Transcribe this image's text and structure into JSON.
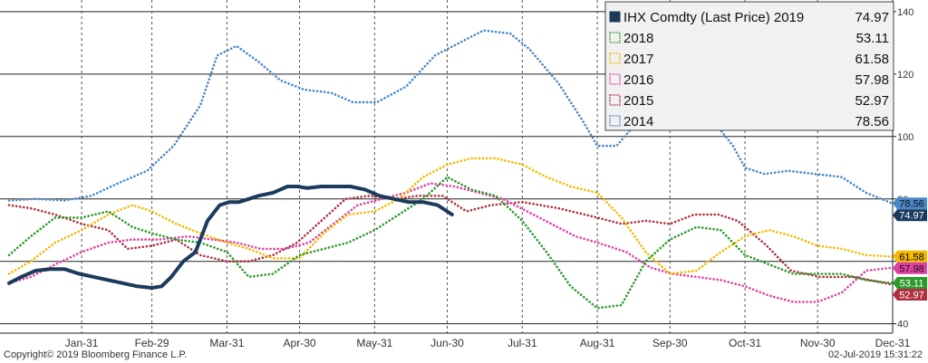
{
  "footer": {
    "copyright": "Copyright© 2019 Bloomberg Finance L.P.",
    "timestamp": "02-Jul-2019 15:31:22"
  },
  "chart_data": {
    "type": "line",
    "title": "",
    "xlabel": "",
    "ylabel": "",
    "x_ticks": [
      "Jan-31",
      "Feb-29",
      "Mar-31",
      "Apr-30",
      "May-31",
      "Jun-30",
      "Jul-31",
      "Aug-31",
      "Sep-30",
      "Oct-31",
      "Nov-30",
      "Dec-31"
    ],
    "x_tick_days": [
      31,
      60,
      91,
      121,
      152,
      182,
      213,
      244,
      274,
      305,
      335,
      366
    ],
    "xlim": [
      1,
      366
    ],
    "y_ticks": [
      40,
      60,
      80,
      100,
      120,
      140
    ],
    "ylim": [
      37,
      142
    ],
    "grid": true,
    "legend_position": "top-right",
    "legend_title": "IHX Comdty (Last Price)",
    "series": [
      {
        "name": "2014",
        "last": 78.56,
        "last_label": "78.56",
        "color": "#4a86c8",
        "style": "dotted",
        "day": [
          1,
          12,
          24,
          35,
          46,
          58,
          69,
          80,
          87,
          95,
          104,
          113,
          123,
          134,
          143,
          153,
          165,
          177,
          187,
          197,
          208,
          216,
          228,
          238,
          244,
          252,
          263,
          274,
          283,
          292,
          300,
          305,
          313,
          323,
          334,
          345,
          355,
          366
        ],
        "values": [
          79.5,
          80,
          79.5,
          81,
          85,
          89,
          97,
          110,
          126,
          129,
          124,
          118,
          115,
          114,
          111,
          111,
          116,
          126,
          130,
          134,
          133,
          128,
          117,
          105,
          97,
          97,
          107,
          110,
          110,
          105,
          97,
          90,
          88,
          89,
          88,
          87,
          82,
          78.5
        ]
      },
      {
        "name": "2015",
        "last": 52.97,
        "last_label": "52.97",
        "color": "#b03040",
        "style": "dotted",
        "day": [
          1,
          10,
          20,
          31,
          42,
          50,
          60,
          70,
          80,
          91,
          100,
          110,
          120,
          130,
          140,
          150,
          160,
          170,
          180,
          190,
          200,
          213,
          228,
          244,
          254,
          264,
          274,
          284,
          294,
          302,
          314,
          324,
          336,
          350,
          366
        ],
        "values": [
          78,
          77,
          75,
          72,
          70,
          64,
          65,
          67,
          62,
          60,
          60,
          62,
          66,
          73,
          80,
          81,
          80,
          81,
          81,
          76,
          78,
          79,
          77,
          74,
          72,
          73,
          72,
          75,
          75,
          73,
          65,
          57,
          55,
          55,
          52.5
        ]
      },
      {
        "name": "2016",
        "last": 57.98,
        "last_label": "57.98",
        "color": "#e040a0",
        "style": "dotted",
        "day": [
          1,
          10,
          20,
          31,
          42,
          52,
          63,
          75,
          85,
          95,
          105,
          115,
          125,
          135,
          145,
          155,
          165,
          175,
          185,
          195,
          205,
          215,
          225,
          235,
          244,
          256,
          266,
          275,
          285,
          295,
          305,
          315,
          325,
          335,
          345,
          355,
          366
        ],
        "values": [
          53,
          55,
          59,
          63,
          66,
          67,
          67,
          68,
          67,
          66,
          64,
          64,
          66,
          72,
          78,
          80,
          82,
          85,
          84,
          82,
          80,
          76,
          72,
          68,
          66,
          63,
          58,
          56,
          55,
          54,
          52,
          49,
          47,
          47,
          50,
          57,
          58
        ]
      },
      {
        "name": "2017",
        "last": 61.58,
        "last_label": "61.58",
        "color": "#f5b800",
        "style": "dotted",
        "day": [
          1,
          10,
          20,
          31,
          42,
          52,
          60,
          70,
          80,
          91,
          100,
          110,
          121,
          131,
          141,
          152,
          162,
          172,
          182,
          192,
          202,
          213,
          223,
          233,
          244,
          254,
          264,
          274,
          285,
          295,
          305,
          315,
          325,
          335,
          345,
          355,
          366
        ],
        "values": [
          56,
          60,
          66,
          70,
          75,
          78,
          76,
          72,
          69,
          66,
          64,
          61,
          61,
          69,
          75,
          76,
          80,
          87,
          91,
          93,
          93,
          91,
          87,
          84,
          82,
          74,
          63,
          56,
          57,
          63,
          68,
          70,
          68,
          65,
          64,
          62,
          61.5
        ]
      },
      {
        "name": "2018",
        "last": 53.11,
        "last_label": "53.11",
        "color": "#2a9a2a",
        "style": "dotted",
        "day": [
          1,
          10,
          20,
          31,
          42,
          52,
          60,
          70,
          80,
          91,
          100,
          110,
          121,
          131,
          141,
          152,
          162,
          172,
          182,
          192,
          202,
          213,
          223,
          233,
          244,
          254,
          264,
          274,
          285,
          295,
          305,
          315,
          325,
          335,
          345,
          355,
          366
        ],
        "values": [
          62,
          68,
          74,
          74,
          76,
          71,
          69,
          67,
          66,
          63,
          55,
          56,
          62,
          64,
          66,
          70,
          75,
          80,
          87,
          83,
          81,
          73,
          63,
          52,
          45,
          46,
          60,
          67,
          71,
          70,
          62,
          59,
          56,
          56,
          56,
          54,
          53
        ]
      },
      {
        "name": "2019",
        "last": 74.97,
        "last_label": "74.97",
        "color": "#1b3a5c",
        "style": "solid",
        "day": [
          1,
          6,
          12,
          18,
          24,
          30,
          36,
          42,
          48,
          54,
          60,
          64,
          68,
          73,
          78,
          83,
          88,
          92,
          96,
          100,
          104,
          110,
          116,
          120,
          124,
          130,
          136,
          142,
          148,
          154,
          160,
          166,
          172,
          178,
          184
        ],
        "values": [
          53,
          55,
          57,
          57.5,
          57.5,
          56,
          55,
          54,
          53,
          52,
          51.5,
          52,
          55,
          60,
          63,
          73,
          78,
          79,
          79,
          80,
          81,
          82,
          84,
          84,
          83.5,
          84,
          84,
          84,
          83,
          81,
          80,
          79,
          79,
          78,
          75
        ]
      }
    ]
  }
}
